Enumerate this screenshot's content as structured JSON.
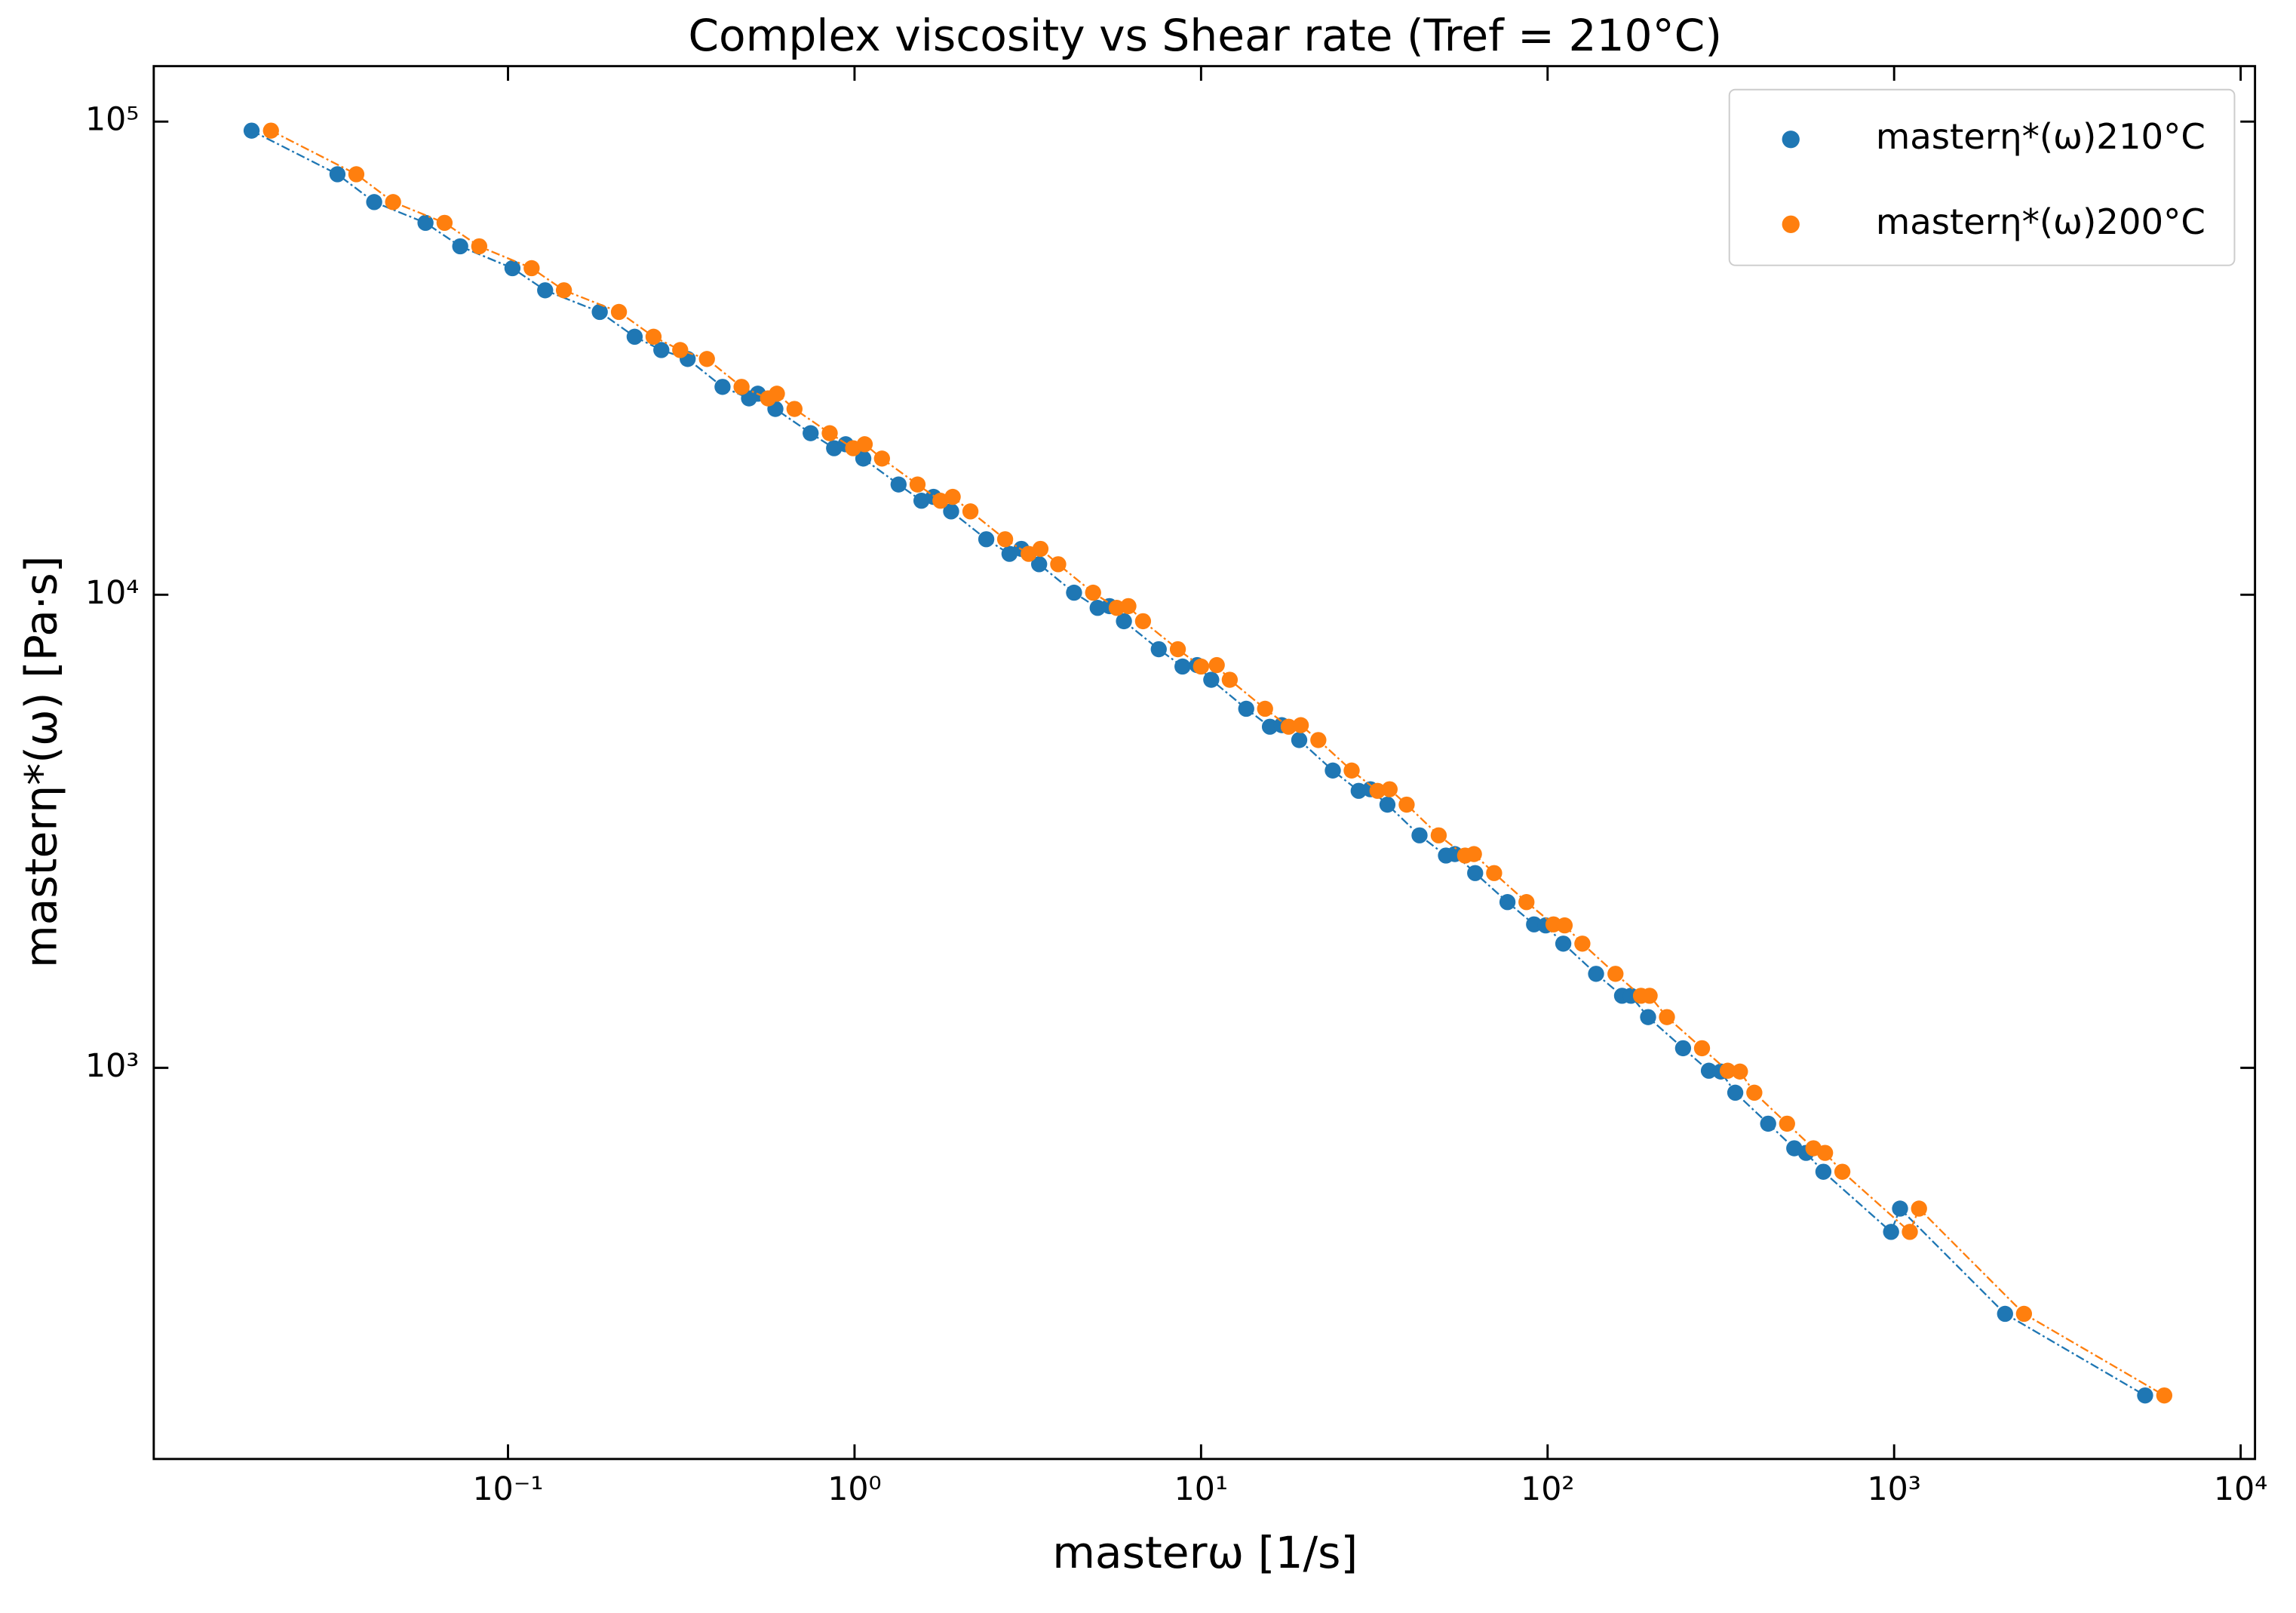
{
  "chart_data": {
    "type": "line",
    "title": "Complex viscosity vs Shear rate (Tref = 210°C)",
    "x_label": "masterω  [1/s]",
    "y_label": "masterη*(ω)  [Pa·s]",
    "xscale": "log",
    "yscale": "log",
    "legend": "upper right",
    "xlim": [
      0.0095,
      11000
    ],
    "ylim": [
      149,
      131000
    ],
    "xticks": [
      {
        "value": 0.1,
        "label": "10⁻¹"
      },
      {
        "value": 1,
        "label": "10⁰"
      },
      {
        "value": 10,
        "label": "10¹"
      },
      {
        "value": 100,
        "label": "10²"
      },
      {
        "value": 1000,
        "label": "10³"
      },
      {
        "value": 10000,
        "label": "10⁴"
      }
    ],
    "yticks": [
      {
        "value": 1000,
        "label": "10³"
      },
      {
        "value": 10000,
        "label": "10⁴"
      },
      {
        "value": 100000,
        "label": "10⁵"
      }
    ],
    "series": [
      {
        "name": "masterη*(ω)210°C",
        "color": "#1f77b4",
        "x": [
          0.0182,
          0.0322,
          0.0411,
          0.0578,
          0.0728,
          0.103,
          0.128,
          0.184,
          0.232,
          0.277,
          0.33,
          0.416,
          0.496,
          0.526,
          0.591,
          0.747,
          0.873,
          0.943,
          1.06,
          1.34,
          1.56,
          1.69,
          1.9,
          2.4,
          2.8,
          3.03,
          3.41,
          4.3,
          5.03,
          5.44,
          5.99,
          7.55,
          8.84,
          9.74,
          10.7,
          13.5,
          15.8,
          17.1,
          19.2,
          24.0,
          28.5,
          30.8,
          34.5,
          42.7,
          50.9,
          54.0,
          61.8,
          76.6,
          91.4,
          98.7,
          111,
          138,
          164,
          174,
          195,
          246,
          292,
          316,
          348,
          433,
          515,
          557,
          625,
          980,
          1040,
          2090,
          5300
        ],
        "values": [
          95700,
          77400,
          67600,
          61100,
          54500,
          49000,
          44000,
          39600,
          35100,
          32900,
          31500,
          27500,
          26000,
          26600,
          24700,
          21950,
          20400,
          20800,
          19400,
          17100,
          15800,
          16100,
          15000,
          13100,
          12200,
          12500,
          11600,
          10100,
          9380,
          9460,
          8790,
          7670,
          7050,
          7100,
          6610,
          5740,
          5260,
          5300,
          4930,
          4250,
          3850,
          3880,
          3600,
          3100,
          2810,
          2830,
          2580,
          2240,
          2010,
          2000,
          1830,
          1580,
          1420,
          1420,
          1280,
          1100,
          986,
          982,
          886,
          762,
          676,
          661,
          603,
          450,
          504,
          302,
          203
        ]
      },
      {
        "name": "masterη*(ω)200°C",
        "color": "#ff7f0e",
        "x": [
          0.0207,
          0.0365,
          0.0466,
          0.0656,
          0.0826,
          0.117,
          0.145,
          0.209,
          0.263,
          0.314,
          0.375,
          0.472,
          0.563,
          0.597,
          0.671,
          0.848,
          0.991,
          1.07,
          1.2,
          1.52,
          1.77,
          1.92,
          2.16,
          2.72,
          3.18,
          3.44,
          3.87,
          4.88,
          5.71,
          6.17,
          6.8,
          8.57,
          10.0,
          11.1,
          12.1,
          15.3,
          17.9,
          19.4,
          21.8,
          27.2,
          32.3,
          35.0,
          39.2,
          48.5,
          57.8,
          61.3,
          70.1,
          86.9,
          104,
          112,
          126,
          157,
          186,
          197,
          221,
          279,
          331,
          359,
          395,
          491,
          585,
          632,
          709,
          1110,
          1180,
          2370,
          6020
        ],
        "values": [
          95700,
          77400,
          67600,
          61100,
          54500,
          49000,
          44000,
          39600,
          35100,
          32900,
          31500,
          27500,
          26000,
          26600,
          24700,
          21950,
          20400,
          20800,
          19400,
          17100,
          15800,
          16100,
          15000,
          13100,
          12200,
          12500,
          11600,
          10100,
          9380,
          9460,
          8790,
          7670,
          7050,
          7100,
          6610,
          5740,
          5260,
          5300,
          4930,
          4250,
          3850,
          3880,
          3600,
          3100,
          2810,
          2830,
          2580,
          2240,
          2010,
          2000,
          1830,
          1580,
          1420,
          1420,
          1280,
          1100,
          986,
          982,
          886,
          762,
          676,
          661,
          603,
          450,
          504,
          302,
          203
        ]
      }
    ]
  }
}
